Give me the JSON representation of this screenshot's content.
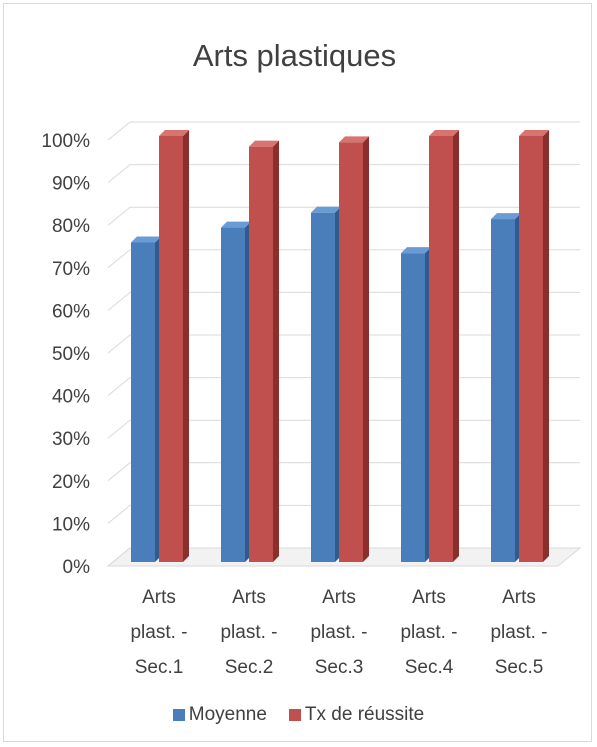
{
  "chart_data": {
    "type": "bar",
    "title": "Arts plastiques",
    "categories": [
      [
        "Arts",
        "plast. -",
        "Sec.1"
      ],
      [
        "Arts",
        "plast. -",
        "Sec.2"
      ],
      [
        "Arts",
        "plast. -",
        "Sec.3"
      ],
      [
        "Arts",
        "plast. -",
        "Sec.4"
      ],
      [
        "Arts",
        "plast. -",
        "Sec.5"
      ]
    ],
    "series": [
      {
        "name": "Moyenne",
        "values": [
          75,
          78.5,
          82,
          72.5,
          80.5
        ],
        "color": "#4a7ebb"
      },
      {
        "name": "Tx de réussite",
        "values": [
          100,
          97.5,
          98.5,
          100,
          100
        ],
        "color": "#c0504d"
      }
    ],
    "y_ticks": [
      "0%",
      "10%",
      "20%",
      "30%",
      "40%",
      "50%",
      "60%",
      "70%",
      "80%",
      "90%",
      "100%"
    ],
    "ylim": [
      0,
      100
    ],
    "grid": true,
    "legend_position": "bottom",
    "style": "3d-clustered-column"
  }
}
